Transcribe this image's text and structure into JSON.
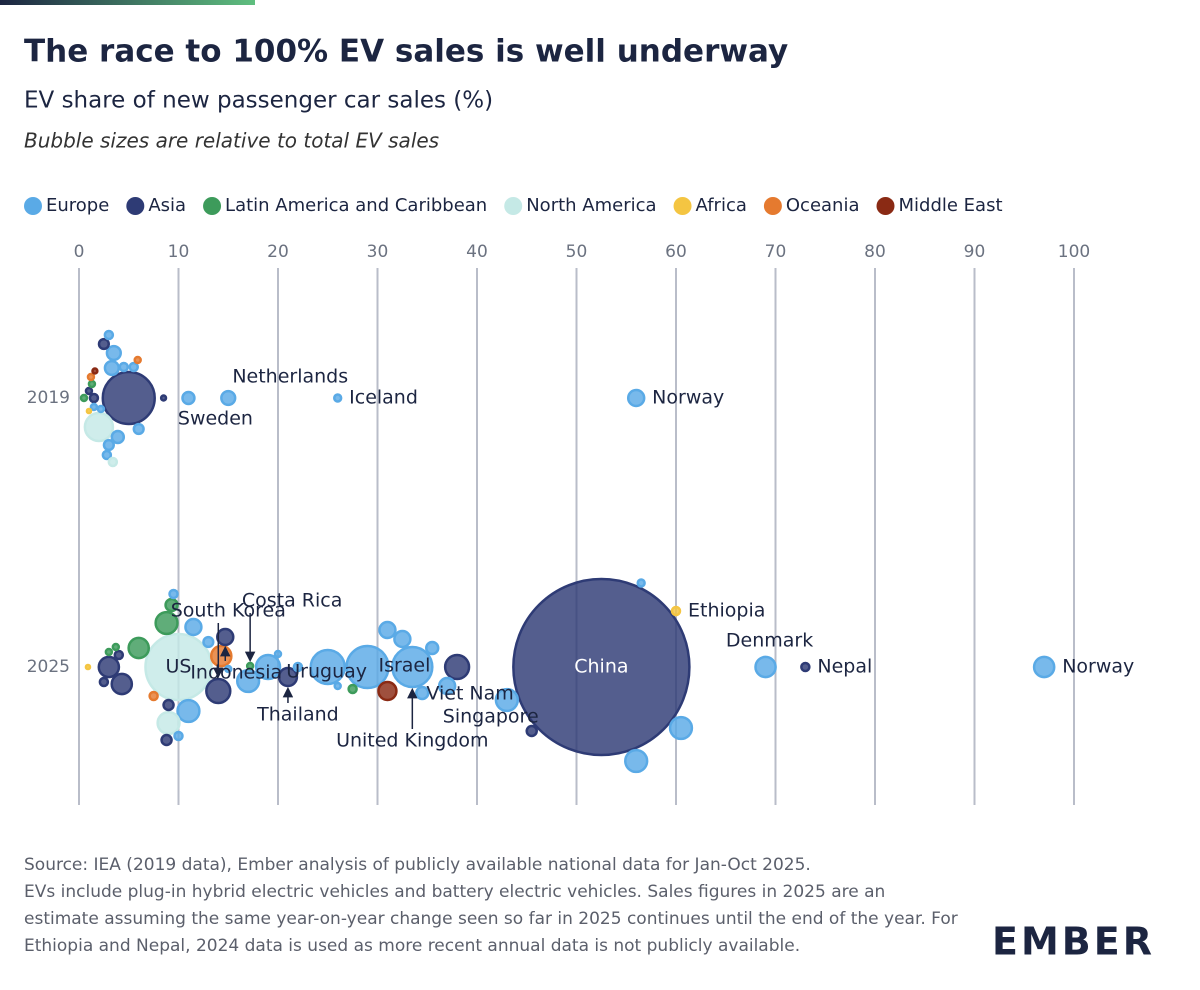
{
  "chart_data": {
    "type": "bubble",
    "title": "The race to 100% EV sales is well underway",
    "subtitle": "EV share of new passenger car sales (%)",
    "note": "Bubble sizes are relative to total EV sales",
    "categories": [
      "2019",
      "2025"
    ],
    "xlim": [
      0,
      100
    ],
    "xticks": [
      0,
      10,
      20,
      30,
      40,
      50,
      60,
      70,
      80,
      90,
      100
    ],
    "grid": true,
    "legend": "top",
    "series": [
      {
        "name": "Europe",
        "color": "#5aaae6",
        "values": [
          56,
          26,
          15,
          11,
          3,
          3.3,
          3.5,
          2.8,
          3.9,
          4.5,
          5.5,
          6,
          3,
          1.5,
          2.2,
          97,
          69,
          56,
          60.5,
          56.5,
          43,
          33.5,
          29,
          25,
          19,
          17,
          11,
          37,
          32.5,
          31,
          34.5,
          35.5,
          11.5,
          13,
          10,
          9.5,
          26,
          15,
          22,
          20
        ],
        "sizes": [
          107,
          20,
          80,
          60,
          40,
          80,
          80,
          27,
          60,
          27,
          27,
          40,
          27,
          15,
          15,
          170,
          170,
          200,
          200,
          20,
          200,
          670,
          740,
          485,
          240,
          200,
          200,
          107,
          107,
          107,
          60,
          60,
          107,
          40,
          27,
          27,
          15,
          15,
          27,
          15
        ],
        "years": [
          "2019",
          "2019",
          "2019",
          "2019",
          "2019",
          "2019",
          "2019",
          "2019",
          "2019",
          "2019",
          "2019",
          "2019",
          "2019",
          "2019",
          "2019",
          "2025",
          "2025",
          "2025",
          "2025",
          "2025",
          "2025",
          "2025",
          "2025",
          "2025",
          "2025",
          "2025",
          "2025",
          "2025",
          "2025",
          "2025",
          "2025",
          "2025",
          "2025",
          "2025",
          "2025",
          "2025",
          "2025",
          "2025",
          "2025",
          "2025"
        ],
        "labels": [
          "Norway",
          "Iceland",
          "Netherlands",
          "Sweden",
          null,
          null,
          null,
          null,
          null,
          null,
          null,
          null,
          null,
          null,
          null,
          "Norway",
          "Denmark",
          null,
          null,
          null,
          null,
          "United Kingdom",
          null,
          null,
          null,
          null,
          null,
          null,
          null,
          null,
          null,
          null,
          null,
          null,
          null,
          null,
          null,
          null,
          null,
          null
        ]
      },
      {
        "name": "Asia",
        "color": "#2e3b75",
        "values": [
          5,
          2.5,
          1.5,
          8.5,
          1,
          52.5,
          73,
          45.5,
          38,
          21,
          14,
          14.7,
          3,
          4.3,
          2.5,
          9,
          4,
          8.8
        ],
        "sizes": [
          1130,
          40,
          27,
          10,
          15,
          13000,
          27,
          42,
          240,
          135,
          240,
          107,
          170,
          170,
          27,
          42,
          27,
          42
        ],
        "years": [
          "2019",
          "2019",
          "2019",
          "2019",
          "2019",
          "2025",
          "2025",
          "2025",
          "2025",
          "2025",
          "2025",
          "2025",
          "2025",
          "2025",
          "2025",
          "2025",
          "2025",
          "2025"
        ],
        "labels": [
          null,
          null,
          null,
          null,
          null,
          "China",
          "Nepal",
          "Singapore",
          "Viet Nam",
          "Thailand",
          "South Korea",
          "Indonesia",
          null,
          null,
          null,
          null,
          null,
          null
        ]
      },
      {
        "name": "Latin America and Caribbean",
        "color": "#3d9b5b",
        "values": [
          0.5,
          1.3,
          27.5,
          17.2,
          6,
          8.8,
          9.3,
          3,
          3.7
        ],
        "sizes": [
          15,
          15,
          27,
          15,
          170,
          200,
          60,
          15,
          15
        ],
        "years": [
          "2019",
          "2019",
          "2025",
          "2025",
          "2025",
          "2025",
          "2025",
          "2025",
          "2025"
        ],
        "labels": [
          null,
          null,
          "Uruguay",
          "Costa Rica",
          null,
          null,
          null,
          null,
          null
        ]
      },
      {
        "name": "North America",
        "color": "#c5e9e6",
        "values": [
          2,
          3.4,
          10,
          9
        ],
        "sizes": [
          330,
          27,
          1830,
          200
        ],
        "years": [
          "2019",
          "2019",
          "2025",
          "2025"
        ],
        "labels": [
          null,
          null,
          "US",
          null
        ]
      },
      {
        "name": "Africa",
        "color": "#f4c542",
        "values": [
          1,
          60,
          0.9
        ],
        "sizes": [
          7,
          27,
          7
        ],
        "years": [
          "2019",
          "2025",
          "2025"
        ],
        "labels": [
          null,
          "Ethiopia",
          null
        ]
      },
      {
        "name": "Oceania",
        "color": "#e57a2f",
        "values": [
          1.2,
          5.9,
          14.3,
          7.5
        ],
        "sizes": [
          15,
          15,
          170,
          27
        ],
        "years": [
          "2019",
          "2019",
          "2025",
          "2025"
        ],
        "labels": [
          null,
          null,
          null,
          null
        ]
      },
      {
        "name": "Middle East",
        "color": "#8a2a14",
        "values": [
          1.6,
          31
        ],
        "sizes": [
          10,
          135
        ],
        "years": [
          "2019",
          "2025"
        ],
        "labels": [
          null,
          "Israel"
        ]
      }
    ],
    "source": "Source: IEA (2019 data), Ember analysis of publicly available national data for Jan-Oct 2025.",
    "footnote": "EVs include plug-in hybrid electric vehicles and battery electric vehicles. Sales figures in 2025 are an estimate assuming the same year-on-year change seen so far in 2025 continues until the end of the year. For Ethiopia and Nepal, 2024 data is used as more recent annual data is not publicly available.",
    "logo": "EMBER"
  }
}
